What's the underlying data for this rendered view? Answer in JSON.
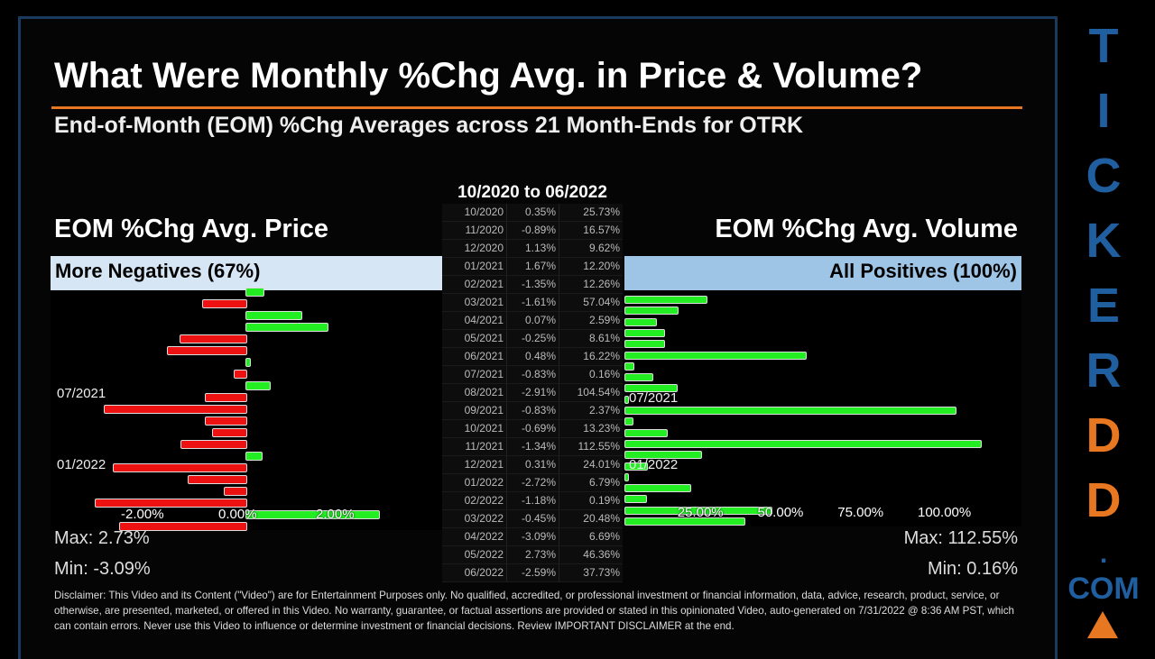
{
  "title": "What Were Monthly %Chg Avg. in Price & Volume?",
  "subtitle": "End-of-Month (EOM) %Chg Averages across 21 Month-Ends for OTRK",
  "range": "10/2020 to 06/2022",
  "price": {
    "heading": "EOM %Chg Avg. Price",
    "band": "More Negatives (67%)",
    "max": "Max: 2.73%",
    "min": "Min: -3.09%",
    "ticks": [
      "-2.00%",
      "0.00%",
      "2.00%"
    ],
    "notes": [
      "07/2021",
      "01/2022"
    ]
  },
  "volume": {
    "heading": "EOM %Chg Avg. Volume",
    "band": "All Positives (100%)",
    "max": "Max: 112.55%",
    "min": "Min: 0.16%",
    "ticks": [
      "25.00%",
      "50.00%",
      "75.00%",
      "100.00%"
    ],
    "notes": [
      "07/2021",
      "01/2022"
    ]
  },
  "table": [
    [
      "10/2020",
      "0.35%",
      "25.73%"
    ],
    [
      "11/2020",
      "-0.89%",
      "16.57%"
    ],
    [
      "12/2020",
      "1.13%",
      "9.62%"
    ],
    [
      "01/2021",
      "1.67%",
      "12.20%"
    ],
    [
      "02/2021",
      "-1.35%",
      "12.26%"
    ],
    [
      "03/2021",
      "-1.61%",
      "57.04%"
    ],
    [
      "04/2021",
      "0.07%",
      "2.59%"
    ],
    [
      "05/2021",
      "-0.25%",
      "8.61%"
    ],
    [
      "06/2021",
      "0.48%",
      "16.22%"
    ],
    [
      "07/2021",
      "-0.83%",
      "0.16%"
    ],
    [
      "08/2021",
      "-2.91%",
      "104.54%"
    ],
    [
      "09/2021",
      "-0.83%",
      "2.37%"
    ],
    [
      "10/2021",
      "-0.69%",
      "13.23%"
    ],
    [
      "11/2021",
      "-1.34%",
      "112.55%"
    ],
    [
      "12/2021",
      "0.31%",
      "24.01%"
    ],
    [
      "01/2022",
      "-2.72%",
      "6.79%"
    ],
    [
      "02/2022",
      "-1.18%",
      "0.19%"
    ],
    [
      "03/2022",
      "-0.45%",
      "20.48%"
    ],
    [
      "04/2022",
      "-3.09%",
      "6.69%"
    ],
    [
      "05/2022",
      "2.73%",
      "46.36%"
    ],
    [
      "06/2022",
      "-2.59%",
      "37.73%"
    ]
  ],
  "chart_data": [
    {
      "type": "bar",
      "orientation": "horizontal",
      "categories": [
        "10/2020",
        "11/2020",
        "12/2020",
        "01/2021",
        "02/2021",
        "03/2021",
        "04/2021",
        "05/2021",
        "06/2021",
        "07/2021",
        "08/2021",
        "09/2021",
        "10/2021",
        "11/2021",
        "12/2021",
        "01/2022",
        "02/2022",
        "03/2022",
        "04/2022",
        "05/2022",
        "06/2022"
      ],
      "values": [
        0.35,
        -0.89,
        1.13,
        1.67,
        -1.35,
        -1.61,
        0.07,
        -0.25,
        0.48,
        -0.83,
        -2.91,
        -0.83,
        -0.69,
        -1.34,
        0.31,
        -2.72,
        -1.18,
        -0.45,
        -3.09,
        2.73,
        -2.59
      ],
      "positive_color": "#22ee22",
      "negative_color": "#ee1111"
    },
    {
      "type": "bar",
      "orientation": "horizontal",
      "categories": [
        "10/2020",
        "11/2020",
        "12/2020",
        "01/2021",
        "02/2021",
        "03/2021",
        "04/2021",
        "05/2021",
        "06/2021",
        "07/2021",
        "08/2021",
        "09/2021",
        "10/2021",
        "11/2021",
        "12/2021",
        "01/2022",
        "02/2022",
        "03/2022",
        "04/2022",
        "05/2022",
        "06/2022"
      ],
      "values": [
        25.73,
        16.57,
        9.62,
        12.2,
        12.26,
        57.04,
        2.59,
        8.61,
        16.22,
        0.16,
        104.54,
        2.37,
        13.23,
        112.55,
        24.01,
        6.79,
        0.19,
        20.48,
        6.69,
        46.36,
        37.73
      ],
      "positive_color": "#22ee22"
    }
  ],
  "disclaimer": "Disclaimer: This Video and its Content (\"Video\") are for Entertainment Purposes only. No qualified, accredited, or professional investment or financial information, data, advice, research, product, service, or otherwise, are presented, marketed, or offered in this Video. No warranty, guarantee, or factual assertions are provided or stated in this opinionated Video, auto-generated on 7/31/2022 @ 8:36 AM PST, which can contain errors. Never use this Video to influence or determine investment or financial decisions. Review IMPORTANT DISCLAIMER at the end.",
  "logo": {
    "letters": [
      "T",
      "I",
      "C",
      "K",
      "E",
      "R",
      "D",
      "D"
    ],
    "dot": ".",
    "com": "COM",
    "blue": "#1f5fa0",
    "orange": "#e87722"
  }
}
